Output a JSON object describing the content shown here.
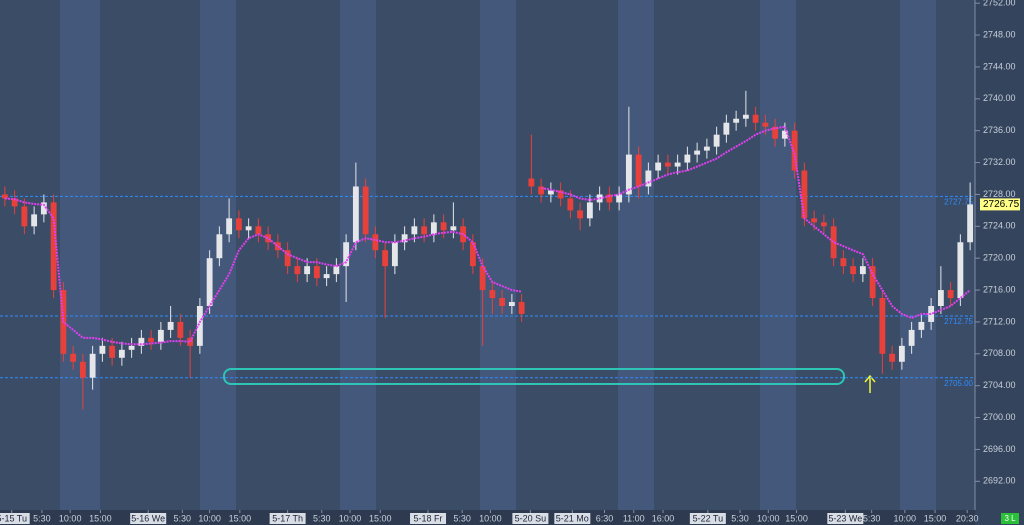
{
  "chart_data": {
    "type": "candlestick",
    "up_color": "#e4e6ea",
    "down_color": "#e8413c",
    "vwap_color": "#e040f0",
    "level_color": "#2f8cff",
    "xlim": [
      0,
      100
    ],
    "ylim": [
      2688.4,
      2752.4
    ],
    "open": [
      2728,
      2727.5,
      2726.5,
      2724,
      2725.5,
      2727,
      2716,
      2708,
      2707,
      2705,
      2708,
      2709,
      2707.5,
      2708.5,
      2709,
      2710,
      2709.5,
      2711,
      2712,
      2710,
      2709,
      2714,
      2720,
      2723,
      2725,
      2723.5,
      2724,
      2723,
      2722,
      2721,
      2719,
      2718,
      2719,
      2717.5,
      2718,
      2719,
      2722,
      2729,
      2723,
      2721,
      2719,
      2722,
      2723,
      2724,
      2723,
      2724.5,
      2723.5,
      2724,
      2722,
      2719,
      2716,
      2715,
      2714,
      2714.5,
      2730,
      2729,
      2728,
      2728.5,
      2727.5,
      2726,
      2725,
      2727,
      2728,
      2727,
      2728,
      2733,
      2729,
      2731,
      2732,
      2731.5,
      2732,
      2733,
      2733.5,
      2734,
      2735.5,
      2737,
      2737.5,
      2738,
      2737,
      2736.5,
      2735,
      2736,
      2731,
      2725,
      2724.5,
      2724,
      2720,
      2719,
      2718,
      2719,
      2715,
      2708,
      2707,
      2709,
      2711,
      2712,
      2714,
      2716,
      2715,
      2722
    ],
    "high": [
      2729,
      2728.5,
      2727.5,
      2726.5,
      2728,
      2728,
      2717,
      2709,
      2708,
      2709,
      2710,
      2710,
      2709.5,
      2710,
      2711,
      2711,
      2712,
      2714,
      2713,
      2711,
      2715,
      2721,
      2724,
      2727.5,
      2726,
      2725,
      2725,
      2724,
      2723,
      2722,
      2720,
      2720,
      2720,
      2719,
      2720,
      2723,
      2732,
      2730,
      2724,
      2722,
      2723,
      2724,
      2725,
      2725,
      2725.5,
      2725.5,
      2727,
      2725,
      2723,
      2720,
      2717,
      2716,
      2715.5,
      2715.5,
      2735.5,
      2730,
      2729.5,
      2729.5,
      2728.5,
      2727,
      2728,
      2729,
      2729,
      2729,
      2739,
      2734,
      2732,
      2733,
      2733,
      2733,
      2734,
      2734.5,
      2735,
      2736.5,
      2738,
      2738.5,
      2741,
      2739,
      2738,
      2737.5,
      2737,
      2737,
      2732,
      2726,
      2725.5,
      2725,
      2721,
      2720,
      2720,
      2720,
      2716,
      2709,
      2710,
      2712,
      2713,
      2715,
      2719,
      2717,
      2723,
      2729.5
    ],
    "low": [
      2726.5,
      2725.5,
      2723,
      2723,
      2724.5,
      2715,
      2707,
      2706,
      2701,
      2703.5,
      2707,
      2706.5,
      2706.5,
      2707.5,
      2708,
      2708.5,
      2708.5,
      2710,
      2709,
      2705,
      2708,
      2713,
      2719,
      2722,
      2722.5,
      2722.5,
      2722,
      2721,
      2720,
      2718,
      2717,
      2717,
      2716.5,
      2716.5,
      2717,
      2714.5,
      2721,
      2722,
      2720,
      2712.5,
      2718,
      2721,
      2722,
      2722,
      2722,
      2722.5,
      2722.5,
      2721,
      2718,
      2709,
      2713,
      2713,
      2713,
      2712,
      2728,
      2727,
      2727,
      2726.5,
      2725,
      2723.5,
      2724,
      2726,
      2726,
      2726,
      2727,
      2727.5,
      2728,
      2730,
      2730.5,
      2730.5,
      2731,
      2732,
      2732.5,
      2733,
      2734.5,
      2736,
      2736.5,
      2736,
      2735.5,
      2734,
      2734,
      2730,
      2724,
      2723.5,
      2723,
      2719,
      2718,
      2717,
      2717,
      2714,
      2705.5,
      2706,
      2706,
      2708,
      2710,
      2711,
      2713,
      2714,
      2714,
      2721
    ],
    "close": [
      2727.5,
      2726.5,
      2724,
      2725.5,
      2727,
      2716,
      2708,
      2707,
      2705,
      2708,
      2709,
      2707.5,
      2708.5,
      2709,
      2710,
      2709.5,
      2711,
      2712,
      2710,
      2709,
      2714,
      2720,
      2723,
      2725,
      2723.5,
      2724,
      2723,
      2722,
      2721,
      2719,
      2718,
      2719,
      2717.5,
      2718,
      2719,
      2722,
      2729,
      2723,
      2721,
      2719,
      2722,
      2723,
      2724,
      2723,
      2724.5,
      2723.5,
      2724,
      2722,
      2719,
      2716,
      2715,
      2714,
      2714.5,
      2713,
      2729,
      2728,
      2728.5,
      2727.5,
      2726,
      2725,
      2727,
      2728,
      2727,
      2728,
      2733,
      2729,
      2731,
      2732,
      2731.5,
      2732,
      2733,
      2733.5,
      2734,
      2735.5,
      2737,
      2737.5,
      2738,
      2737,
      2736.5,
      2735,
      2736,
      2731,
      2725,
      2724.5,
      2724,
      2720,
      2719,
      2718,
      2719,
      2715,
      2708,
      2707,
      2709,
      2711,
      2712,
      2714,
      2716,
      2715,
      2722,
      2726.75
    ],
    "vwap": [
      2727.5,
      2727.4,
      2727,
      2726.8,
      2726.7,
      2725,
      2712,
      2711,
      2710,
      2710,
      2709.8,
      2709.5,
      2709.3,
      2709.2,
      2709.2,
      2709.3,
      2709.4,
      2709.6,
      2709.6,
      2709.5,
      2712,
      2714,
      2716,
      2718,
      2721,
      2722.5,
      2723,
      2722.5,
      2721.5,
      2720.5,
      2720,
      2719.5,
      2719.5,
      2719.2,
      2719,
      2719.5,
      2722,
      2722.5,
      2722.3,
      2722,
      2722,
      2722.2,
      2722.5,
      2722.7,
      2723,
      2723.2,
      2723.3,
      2723,
      2722,
      2719,
      2717,
      2716.5,
      2716,
      2715.8,
      null,
      2728.8,
      2728.6,
      2728.3,
      2728,
      2727.5,
      2727.3,
      2727.5,
      2727.8,
      2728,
      2728.6,
      2729,
      2729.5,
      2730,
      2730.5,
      2730.8,
      2731,
      2731.5,
      2732,
      2732.5,
      2733.3,
      2734,
      2734.7,
      2735.5,
      2736,
      2736.3,
      2736.5,
      2733,
      2725,
      2724,
      2723,
      2722,
      2721.5,
      2721,
      2720.5,
      2718,
      2716,
      2714,
      2713,
      2712.5,
      2713,
      2713,
      2713.5,
      2714,
      2715,
      2716
    ],
    "yticks": [
      {
        "value": 2692,
        "label": "2692.00"
      },
      {
        "value": 2696,
        "label": "2696.00"
      },
      {
        "value": 2700,
        "label": "2700.00"
      },
      {
        "value": 2704,
        "label": "2704.00"
      },
      {
        "value": 2708,
        "label": "2708.00"
      },
      {
        "value": 2712,
        "label": "2712.00"
      },
      {
        "value": 2716,
        "label": "2716.00"
      },
      {
        "value": 2720,
        "label": "2720.00"
      },
      {
        "value": 2724,
        "label": "2724.00"
      },
      {
        "value": 2728,
        "label": "2728.00"
      },
      {
        "value": 2732,
        "label": "2732.00"
      },
      {
        "value": 2736,
        "label": "2736.00"
      },
      {
        "value": 2740,
        "label": "2740.00"
      },
      {
        "value": 2744,
        "label": "2744.00"
      },
      {
        "value": 2748,
        "label": "2748.00"
      },
      {
        "value": 2752,
        "label": "2752.00"
      }
    ],
    "xticks": [
      {
        "value": 1.2,
        "label": "5-15 Tu"
      },
      {
        "value": 4.3,
        "label": "5:30"
      },
      {
        "value": 7.2,
        "label": "10:00"
      },
      {
        "value": 10.3,
        "label": "15:00"
      },
      {
        "value": 15.2,
        "label": "5-16 We"
      },
      {
        "value": 18.7,
        "label": "5:30"
      },
      {
        "value": 21.5,
        "label": "10:00"
      },
      {
        "value": 24.6,
        "label": "15:00"
      },
      {
        "value": 29.5,
        "label": "5-17 Th"
      },
      {
        "value": 33,
        "label": "5:30"
      },
      {
        "value": 35.9,
        "label": "10:00"
      },
      {
        "value": 39,
        "label": "15:00"
      },
      {
        "value": 43.9,
        "label": "5-18 Fr"
      },
      {
        "value": 47.4,
        "label": "5:30"
      },
      {
        "value": 50.3,
        "label": "10:00"
      },
      {
        "value": 54.4,
        "label": "5-20 Su"
      },
      {
        "value": 58.7,
        "label": "5-21 Mo"
      },
      {
        "value": 62,
        "label": "6:30"
      },
      {
        "value": 65,
        "label": "11:00"
      },
      {
        "value": 68,
        "label": "16:00"
      },
      {
        "value": 72.6,
        "label": "5-22 Tu"
      },
      {
        "value": 75.9,
        "label": "5:30"
      },
      {
        "value": 78.8,
        "label": "10:00"
      },
      {
        "value": 81.7,
        "label": "15:00"
      },
      {
        "value": 86.7,
        "label": "5-23 We"
      },
      {
        "value": 89.4,
        "label": "5:30"
      },
      {
        "value": 92.8,
        "label": "10:00"
      },
      {
        "value": 95.9,
        "label": "15:00"
      },
      {
        "value": 99.2,
        "label": "20:30"
      }
    ],
    "levels": [
      2727.75,
      2712.75,
      {
        "value": 2705,
        "label": "2705.00"
      }
    ],
    "last_price": 2726.75,
    "status_label": "3 L"
  }
}
